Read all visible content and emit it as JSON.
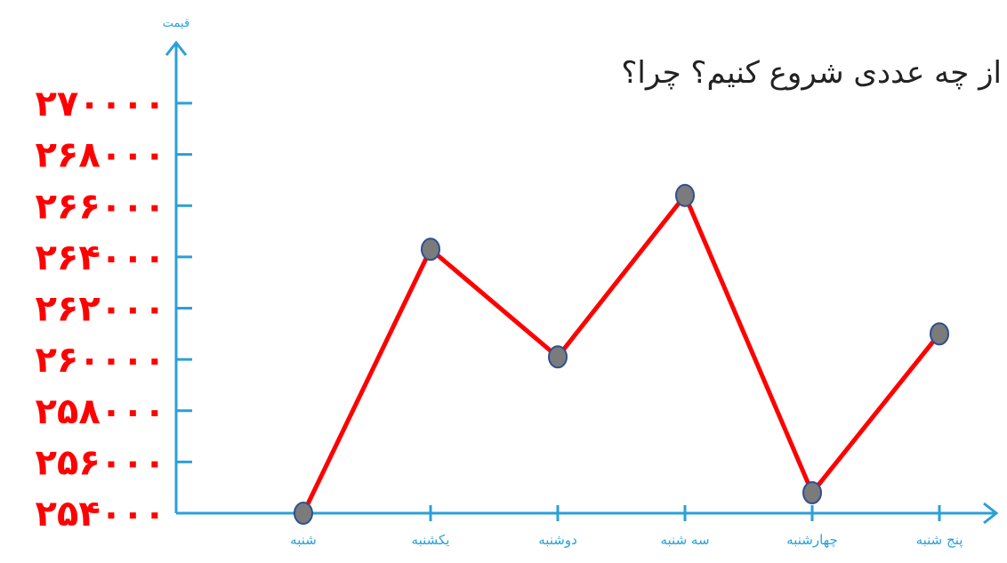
{
  "question_text": "از چه عددی شروع کنیم؟ چرا؟",
  "chart_data": {
    "type": "line",
    "ylabel": "قیمت",
    "xlabel": "",
    "categories": [
      "شنبه",
      "یکشنبه",
      "دوشنبه",
      "سه شنبه",
      "چهارشنبه",
      "پنج شنبه"
    ],
    "values": [
      254000,
      264300,
      260100,
      266400,
      254800,
      261000
    ],
    "y_tick_labels": [
      "۲۵۴۰۰۰",
      "۲۵۶۰۰۰",
      "۲۵۸۰۰۰",
      "۲۶۰۰۰۰",
      "۲۶۲۰۰۰",
      "۲۶۴۰۰۰",
      "۲۶۶۰۰۰",
      "۲۶۸۰۰۰",
      "۲۷۰۰۰۰"
    ],
    "y_ticks": [
      254000,
      256000,
      258000,
      260000,
      262000,
      264000,
      266000,
      268000,
      270000
    ],
    "ylim": [
      254000,
      270000
    ],
    "grid": false,
    "colors": {
      "line": "#ff0000",
      "marker_fill": "#7b7b7b",
      "marker_stroke": "#2f4f8f",
      "axis": "#2aa0d8",
      "y_tick_label": "#ff0000",
      "x_tick_label": "#2aa0d8"
    }
  }
}
